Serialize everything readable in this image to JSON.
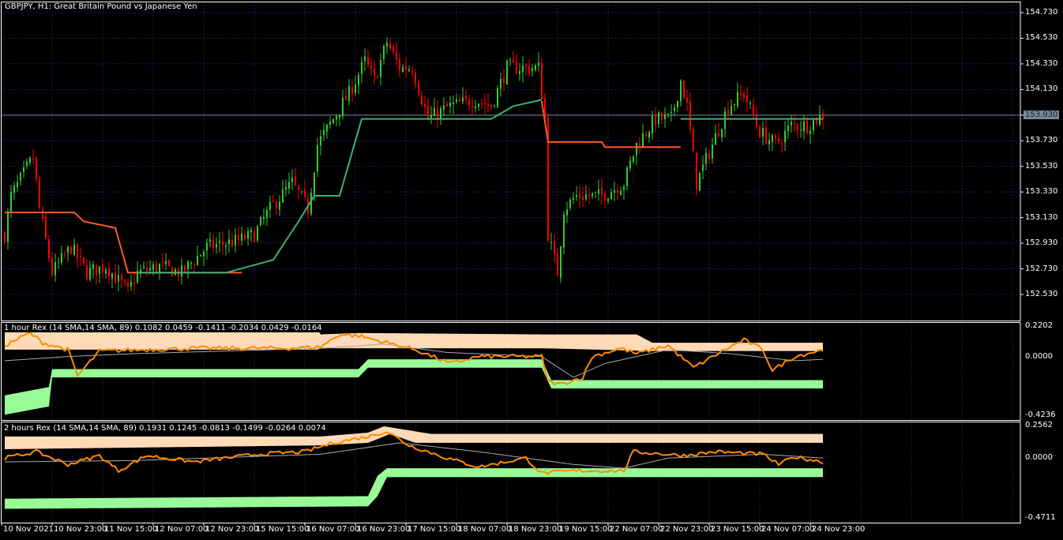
{
  "header": {
    "title": "GBPJPY, H1:  Great Britain Pound vs Japanese Yen"
  },
  "panels": [
    {
      "label": "1 hour Rex (14 SMA,14 SMA, 89) 0.1082 0.0459 -0.1411 -0.2034 0.0429 -0.0164"
    },
    {
      "label": "2 hours Rex (14 SMA,14 SMA, 89) 0.1931 0.1245 -0.0813 -0.1499 -0.0264 0.0074"
    }
  ],
  "colors": {
    "bull": "#32cd32",
    "bear": "#ff0000",
    "orange_line": "#ff5a1e",
    "green_line": "#3cb371",
    "band_upper": "#ffdab9",
    "band_lower": "#98fb98",
    "osc": "#ff8c00",
    "signal": "#a9a9a9",
    "grid": "#1a1a5e"
  },
  "chart_data": [
    {
      "type": "candlestick",
      "title": "GBPJPY, H1",
      "current_price": "153.930",
      "y_ticks": [
        "154.730",
        "154.530",
        "154.330",
        "154.130",
        "153.930",
        "153.730",
        "153.530",
        "153.330",
        "153.130",
        "152.930",
        "152.730",
        "152.530"
      ],
      "ylim": [
        152.43,
        154.83
      ],
      "x_ticks": [
        "10 Nov 2021",
        "10 Nov 23:00",
        "11 Nov 15:00",
        "12 Nov 07:00",
        "12 Nov 23:00",
        "15 Nov 15:00",
        "16 Nov 07:00",
        "16 Nov 23:00",
        "17 Nov 15:00",
        "18 Nov 07:00",
        "18 Nov 23:00",
        "19 Nov 15:00",
        "22 Nov 07:00",
        "22 Nov 23:00",
        "23 Nov 15:00",
        "24 Nov 07:00",
        "24 Nov 23:00"
      ],
      "close_keypoints_bar_price": [
        [
          0,
          153.0
        ],
        [
          2,
          153.3
        ],
        [
          9,
          153.6
        ],
        [
          11,
          153.2
        ],
        [
          15,
          152.7
        ],
        [
          21,
          152.9
        ],
        [
          26,
          152.7
        ],
        [
          32,
          152.75
        ],
        [
          39,
          152.55
        ],
        [
          42,
          152.7
        ],
        [
          49,
          152.75
        ],
        [
          56,
          152.7
        ],
        [
          64,
          152.9
        ],
        [
          74,
          152.95
        ],
        [
          79,
          153.0
        ],
        [
          84,
          153.2
        ],
        [
          91,
          153.4
        ],
        [
          96,
          153.2
        ],
        [
          99,
          153.7
        ],
        [
          104,
          153.9
        ],
        [
          109,
          154.1
        ],
        [
          114,
          154.35
        ],
        [
          117,
          154.2
        ],
        [
          121,
          154.5
        ],
        [
          125,
          154.3
        ],
        [
          129,
          154.3
        ],
        [
          134,
          153.9
        ],
        [
          141,
          154.0
        ],
        [
          149,
          154.05
        ],
        [
          154,
          154.0
        ],
        [
          159,
          154.3
        ],
        [
          164,
          154.3
        ],
        [
          169,
          154.3
        ],
        [
          171,
          153.9
        ],
        [
          172,
          153.0
        ],
        [
          175,
          152.7
        ],
        [
          177,
          153.2
        ],
        [
          181,
          153.3
        ],
        [
          189,
          153.3
        ],
        [
          196,
          153.4
        ],
        [
          200,
          153.7
        ],
        [
          206,
          153.9
        ],
        [
          211,
          153.9
        ],
        [
          214,
          154.2
        ],
        [
          216,
          154.0
        ],
        [
          219,
          153.4
        ],
        [
          224,
          153.7
        ],
        [
          229,
          154.0
        ],
        [
          234,
          154.1
        ],
        [
          239,
          153.8
        ],
        [
          244,
          153.7
        ],
        [
          249,
          153.85
        ],
        [
          254,
          153.85
        ],
        [
          259,
          153.93
        ]
      ],
      "orange_stop_line": [
        [
          0,
          153.17
        ],
        [
          22,
          153.17
        ],
        [
          25,
          153.1
        ],
        [
          35,
          153.05
        ],
        [
          39,
          152.7
        ],
        [
          75,
          152.7
        ]
      ],
      "orange_stop_line_2": [
        [
          170,
          154.04
        ],
        [
          172,
          153.72
        ],
        [
          189,
          153.72
        ],
        [
          190,
          153.68
        ],
        [
          214,
          153.68
        ]
      ],
      "green_stop_line": [
        [
          42,
          152.7
        ],
        [
          70,
          152.7
        ],
        [
          85,
          152.8
        ],
        [
          93,
          153.1
        ],
        [
          98,
          153.3
        ],
        [
          106,
          153.3
        ],
        [
          113,
          153.9
        ],
        [
          154,
          153.9
        ],
        [
          161,
          154.0
        ],
        [
          170,
          154.05
        ]
      ],
      "green_stop_line_2": [
        [
          214,
          153.9
        ],
        [
          259,
          153.9
        ]
      ]
    },
    {
      "type": "indicator",
      "name": "1 hour Rex",
      "y_ticks": [
        "0.2202",
        "0.0000",
        "-0.4236"
      ],
      "ylim": [
        -0.4236,
        0.2202
      ],
      "upper_band_top": [
        [
          0,
          0.2
        ],
        [
          99,
          0.2
        ],
        [
          100,
          0.16
        ],
        [
          112,
          0.17
        ],
        [
          170,
          0.16
        ],
        [
          200,
          0.16
        ],
        [
          205,
          0.1
        ],
        [
          259,
          0.1
        ]
      ],
      "upper_band_bottom": [
        [
          0,
          0.05
        ],
        [
          99,
          0.05
        ],
        [
          100,
          0.06
        ],
        [
          170,
          0.06
        ],
        [
          205,
          0.04
        ],
        [
          259,
          0.04
        ]
      ],
      "lower_band_top": [
        [
          0,
          -0.28
        ],
        [
          14,
          -0.22
        ],
        [
          15,
          -0.09
        ],
        [
          112,
          -0.09
        ],
        [
          115,
          -0.02
        ],
        [
          170,
          -0.02
        ],
        [
          173,
          -0.17
        ],
        [
          259,
          -0.17
        ]
      ],
      "lower_band_bottom": [
        [
          0,
          -0.42
        ],
        [
          14,
          -0.36
        ],
        [
          15,
          -0.15
        ],
        [
          112,
          -0.15
        ],
        [
          115,
          -0.08
        ],
        [
          170,
          -0.08
        ],
        [
          173,
          -0.23
        ],
        [
          259,
          -0.23
        ]
      ],
      "oscillator": [
        [
          0,
          0.08
        ],
        [
          8,
          0.17
        ],
        [
          12,
          0.1
        ],
        [
          20,
          0.05
        ],
        [
          23,
          -0.14
        ],
        [
          30,
          0.04
        ],
        [
          60,
          0.06
        ],
        [
          90,
          0.06
        ],
        [
          100,
          0.07
        ],
        [
          106,
          0.16
        ],
        [
          112,
          0.15
        ],
        [
          130,
          0.05
        ],
        [
          141,
          -0.05
        ],
        [
          150,
          0.0
        ],
        [
          170,
          0.0
        ],
        [
          172,
          -0.18
        ],
        [
          176,
          -0.2
        ],
        [
          183,
          -0.15
        ],
        [
          186,
          0.0
        ],
        [
          195,
          0.06
        ],
        [
          200,
          0.02
        ],
        [
          210,
          0.08
        ],
        [
          218,
          -0.08
        ],
        [
          228,
          0.05
        ],
        [
          234,
          0.12
        ],
        [
          240,
          0.05
        ],
        [
          243,
          -0.1
        ],
        [
          250,
          0.0
        ],
        [
          259,
          0.05
        ]
      ],
      "signal": [
        [
          0,
          -0.03
        ],
        [
          20,
          0.0
        ],
        [
          40,
          0.02
        ],
        [
          100,
          0.06
        ],
        [
          120,
          0.09
        ],
        [
          140,
          0.03
        ],
        [
          170,
          0.0
        ],
        [
          180,
          -0.15
        ],
        [
          190,
          -0.05
        ],
        [
          210,
          0.05
        ],
        [
          230,
          0.02
        ],
        [
          250,
          -0.03
        ],
        [
          259,
          -0.02
        ]
      ]
    },
    {
      "type": "indicator",
      "name": "2 hours Rex",
      "y_ticks": [
        "0.2562",
        "0.0000",
        "-0.4711"
      ],
      "ylim": [
        -0.4711,
        0.2562
      ],
      "upper_band_top": [
        [
          0,
          0.17
        ],
        [
          100,
          0.17
        ],
        [
          115,
          0.2
        ],
        [
          120,
          0.25
        ],
        [
          135,
          0.19
        ],
        [
          259,
          0.19
        ]
      ],
      "upper_band_bottom": [
        [
          0,
          0.07
        ],
        [
          100,
          0.1
        ],
        [
          115,
          0.12
        ],
        [
          122,
          0.19
        ],
        [
          130,
          0.12
        ],
        [
          259,
          0.12
        ]
      ],
      "lower_band_top": [
        [
          0,
          -0.32
        ],
        [
          115,
          -0.3
        ],
        [
          118,
          -0.14
        ],
        [
          121,
          -0.08
        ],
        [
          259,
          -0.08
        ]
      ],
      "lower_band_bottom": [
        [
          0,
          -0.4
        ],
        [
          115,
          -0.38
        ],
        [
          118,
          -0.3
        ],
        [
          121,
          -0.15
        ],
        [
          259,
          -0.15
        ]
      ],
      "oscillator": [
        [
          0,
          0.0
        ],
        [
          10,
          0.05
        ],
        [
          20,
          -0.05
        ],
        [
          30,
          0.02
        ],
        [
          36,
          -0.1
        ],
        [
          45,
          0.02
        ],
        [
          60,
          -0.03
        ],
        [
          80,
          0.03
        ],
        [
          95,
          0.05
        ],
        [
          104,
          0.12
        ],
        [
          115,
          0.17
        ],
        [
          121,
          0.21
        ],
        [
          128,
          0.1
        ],
        [
          140,
          0.0
        ],
        [
          150,
          -0.07
        ],
        [
          165,
          0.0
        ],
        [
          170,
          -0.12
        ],
        [
          180,
          -0.1
        ],
        [
          196,
          -0.1
        ],
        [
          199,
          0.05
        ],
        [
          215,
          0.02
        ],
        [
          225,
          0.05
        ],
        [
          240,
          0.03
        ],
        [
          245,
          -0.05
        ],
        [
          250,
          0.01
        ],
        [
          259,
          -0.03
        ]
      ],
      "signal": [
        [
          0,
          -0.03
        ],
        [
          40,
          -0.02
        ],
        [
          100,
          0.03
        ],
        [
          125,
          0.12
        ],
        [
          150,
          0.05
        ],
        [
          180,
          -0.05
        ],
        [
          196,
          -0.08
        ],
        [
          210,
          0.0
        ],
        [
          240,
          0.03
        ],
        [
          259,
          0.0
        ]
      ]
    }
  ]
}
